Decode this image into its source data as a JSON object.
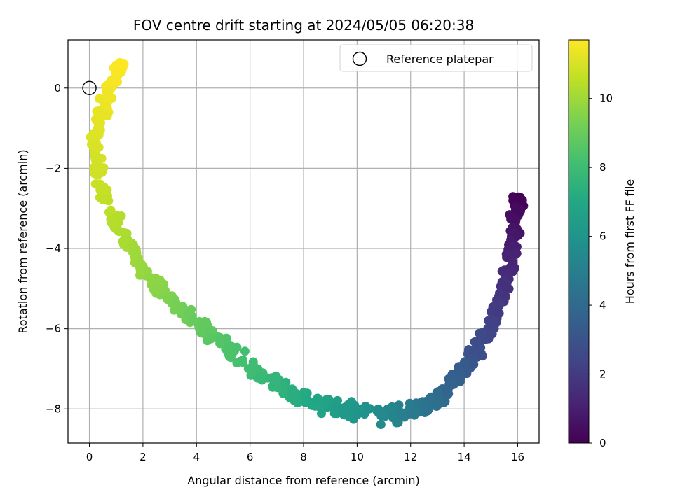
{
  "chart_data": {
    "type": "scatter",
    "title": "FOV centre drift starting at 2024/05/05 06:20:38",
    "xlabel": "Angular distance from reference (arcmin)",
    "ylabel": "Rotation from reference (arcmin)",
    "xlim": [
      -0.8,
      16.8
    ],
    "ylim": [
      -8.85,
      1.2
    ],
    "xticks": [
      0,
      2,
      4,
      6,
      8,
      10,
      12,
      14,
      16
    ],
    "yticks": [
      0,
      -2,
      -4,
      -6,
      -8
    ],
    "grid": true,
    "legend": {
      "location": "top-right",
      "entries": [
        "Reference platepar"
      ]
    },
    "reference_point": {
      "x": 0,
      "y": 0,
      "label": "Reference platepar"
    },
    "colorbar": {
      "label": "Hours from first FF file",
      "min": 0,
      "max": 11.7,
      "ticks": [
        0,
        2,
        4,
        6,
        8,
        10
      ],
      "colormap": "viridis"
    },
    "trend": [
      {
        "hours": 0.0,
        "x": 16.0,
        "y": -2.7
      },
      {
        "hours": 0.3,
        "x": 15.9,
        "y": -3.0
      },
      {
        "hours": 0.6,
        "x": 15.9,
        "y": -3.5
      },
      {
        "hours": 1.0,
        "x": 15.8,
        "y": -4.0
      },
      {
        "hours": 1.4,
        "x": 15.6,
        "y": -4.6
      },
      {
        "hours": 1.8,
        "x": 15.4,
        "y": -5.2
      },
      {
        "hours": 2.2,
        "x": 15.1,
        "y": -5.8
      },
      {
        "hours": 2.6,
        "x": 14.7,
        "y": -6.3
      },
      {
        "hours": 3.0,
        "x": 14.3,
        "y": -6.7
      },
      {
        "hours": 3.4,
        "x": 13.9,
        "y": -7.1
      },
      {
        "hours": 3.8,
        "x": 13.4,
        "y": -7.5
      },
      {
        "hours": 4.2,
        "x": 12.9,
        "y": -7.8
      },
      {
        "hours": 4.7,
        "x": 12.2,
        "y": -8.0
      },
      {
        "hours": 5.2,
        "x": 11.4,
        "y": -8.1
      },
      {
        "hours": 5.7,
        "x": 10.6,
        "y": -8.1
      },
      {
        "hours": 6.2,
        "x": 9.7,
        "y": -8.0
      },
      {
        "hours": 6.7,
        "x": 8.8,
        "y": -7.9
      },
      {
        "hours": 7.2,
        "x": 7.8,
        "y": -7.7
      },
      {
        "hours": 7.6,
        "x": 7.0,
        "y": -7.4
      },
      {
        "hours": 8.0,
        "x": 6.1,
        "y": -7.0
      },
      {
        "hours": 8.4,
        "x": 5.2,
        "y": -6.5
      },
      {
        "hours": 8.8,
        "x": 4.3,
        "y": -6.0
      },
      {
        "hours": 9.2,
        "x": 3.4,
        "y": -5.5
      },
      {
        "hours": 9.6,
        "x": 2.6,
        "y": -5.0
      },
      {
        "hours": 9.9,
        "x": 1.9,
        "y": -4.4
      },
      {
        "hours": 10.2,
        "x": 1.3,
        "y": -3.7
      },
      {
        "hours": 10.5,
        "x": 0.8,
        "y": -3.0
      },
      {
        "hours": 10.8,
        "x": 0.4,
        "y": -2.2
      },
      {
        "hours": 11.0,
        "x": 0.1,
        "y": -1.5
      },
      {
        "hours": 11.2,
        "x": 0.3,
        "y": -0.9
      },
      {
        "hours": 11.4,
        "x": 0.6,
        "y": -0.3
      },
      {
        "hours": 11.6,
        "x": 1.0,
        "y": 0.3
      },
      {
        "hours": 11.7,
        "x": 1.2,
        "y": 0.7
      }
    ],
    "points_per_segment": 20,
    "spread": {
      "along": 0.35,
      "across": 0.18
    }
  }
}
